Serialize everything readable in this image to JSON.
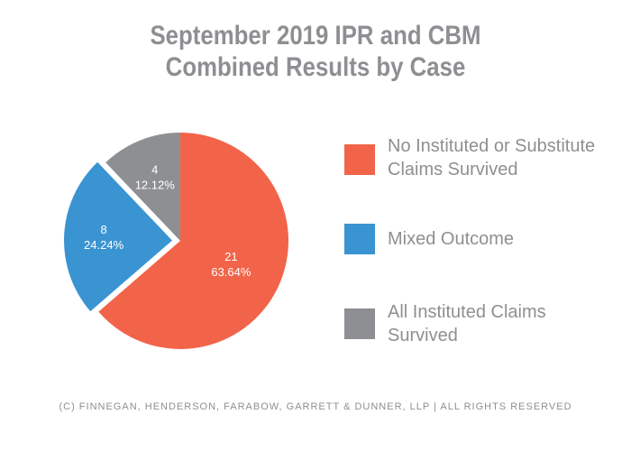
{
  "chart_data": {
    "type": "pie",
    "title": "September 2019 IPR and CBM Combined Results by Case",
    "title_lines": [
      "September 2019 IPR and CBM",
      "Combined Results by Case"
    ],
    "slices": [
      {
        "label": "No Instituted or Substitute Claims Survived",
        "label_lines": [
          "No Instituted or Substitute",
          "Claims Survived"
        ],
        "value": 21,
        "percent": "63.64%",
        "color": "#f26449",
        "exploded": false
      },
      {
        "label": "Mixed Outcome",
        "label_lines": [
          "Mixed Outcome"
        ],
        "value": 8,
        "percent": "24.24%",
        "color": "#3a94d2",
        "exploded": true
      },
      {
        "label": "All Instituted Claims Survived",
        "label_lines": [
          "All Instituted Claims",
          "Survived"
        ],
        "value": 4,
        "percent": "12.12%",
        "color": "#8e8f92",
        "exploded": false
      }
    ],
    "legend_position": "right"
  },
  "footer": "(c) Finnegan, Henderson, Farabow, Garrett & Dunner, LLP | All Rights Reserved"
}
